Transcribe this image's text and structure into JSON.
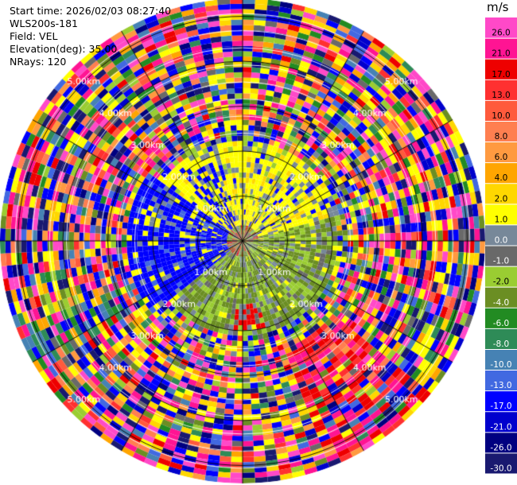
{
  "header": {
    "start_time": "Start time: 2026/02/03 08:27:40",
    "instrument": "WLS200s-181",
    "field": "Field: VEL",
    "elevation": "Elevation(deg): 35.00",
    "nrays": "NRays: 120"
  },
  "chart_data": {
    "type": "heatmap",
    "subtype": "polar-ppi",
    "field": "VEL",
    "elevation_deg": 35.0,
    "n_rays": 120,
    "max_range_km": 5.4,
    "range_rings_km": [
      1.0,
      2.0,
      3.0,
      4.0,
      5.0
    ],
    "range_ring_labels": [
      "1.00km",
      "2.00km",
      "3.00km",
      "4.00km",
      "5.00km"
    ],
    "units": "m/s",
    "colorbar": {
      "ticks": [
        "26.0",
        "21.0",
        "17.0",
        "13.0",
        "10.0",
        "8.0",
        "6.0",
        "4.0",
        "2.0",
        "1.0",
        "0.0",
        "-1.0",
        "-2.0",
        "-4.0",
        "-6.0",
        "-8.0",
        "-10.0",
        "-13.0",
        "-17.0",
        "-21.0",
        "-26.0",
        "-30.0"
      ],
      "colors": [
        "#ff49c8",
        "#ff1493",
        "#ee0000",
        "#ff3030",
        "#ff5a3c",
        "#ff7f50",
        "#ff9a40",
        "#ffa500",
        "#ffd700",
        "#ffff00",
        "#778899",
        "#696969",
        "#9acd32",
        "#6b8e23",
        "#228b22",
        "#2e8b57",
        "#4682b4",
        "#4169e1",
        "#0000ff",
        "#0000cd",
        "#000080",
        "#191970"
      ]
    },
    "pattern_note": "Coherent VEL core within ~2 km (yellow NW/N/NE, green-grey E/S, blue W), noisy multicolor beyond"
  }
}
